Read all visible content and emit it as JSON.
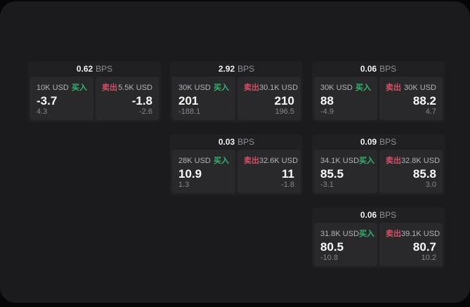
{
  "labels": {
    "bps": "BPS",
    "buy": "买入",
    "sell": "卖出"
  },
  "colors": {
    "buy": "#36b36d",
    "sell": "#d25068",
    "window_bg": "#1b1b1d",
    "card_bg": "#202023",
    "panel_bg": "#29292c"
  },
  "cards": [
    {
      "bps": "0.62",
      "grid": {
        "row": 1,
        "col": 1
      },
      "buy": {
        "size": "10K USD",
        "value": "-3.7",
        "sub": "4.3"
      },
      "sell": {
        "size": "5.5K USD",
        "value": "-1.8",
        "sub": "-2.6"
      }
    },
    {
      "bps": "2.92",
      "grid": {
        "row": 1,
        "col": 2
      },
      "buy": {
        "size": "30K USD",
        "value": "201",
        "sub": "-188.1"
      },
      "sell": {
        "size": "30.1K USD",
        "value": "210",
        "sub": "196.5"
      }
    },
    {
      "bps": "0.06",
      "grid": {
        "row": 1,
        "col": 3
      },
      "buy": {
        "size": "30K USD",
        "value": "88",
        "sub": "-4.9"
      },
      "sell": {
        "size": "30K USD",
        "value": "88.2",
        "sub": "4.7"
      }
    },
    {
      "bps": "0.03",
      "grid": {
        "row": 2,
        "col": 2
      },
      "buy": {
        "size": "28K USD",
        "value": "10.9",
        "sub": "1.3"
      },
      "sell": {
        "size": "32.6K USD",
        "value": "11",
        "sub": "-1.8"
      }
    },
    {
      "bps": "0.09",
      "grid": {
        "row": 2,
        "col": 3
      },
      "buy": {
        "size": "34.1K USD",
        "value": "85.5",
        "sub": "-3.1"
      },
      "sell": {
        "size": "32.8K USD",
        "value": "85.8",
        "sub": "3.0"
      }
    },
    {
      "bps": "0.06",
      "grid": {
        "row": 3,
        "col": 3
      },
      "buy": {
        "size": "31.8K USD",
        "value": "80.5",
        "sub": "-10.8"
      },
      "sell": {
        "size": "39.1K USD",
        "value": "80.7",
        "sub": "10.2"
      }
    }
  ]
}
